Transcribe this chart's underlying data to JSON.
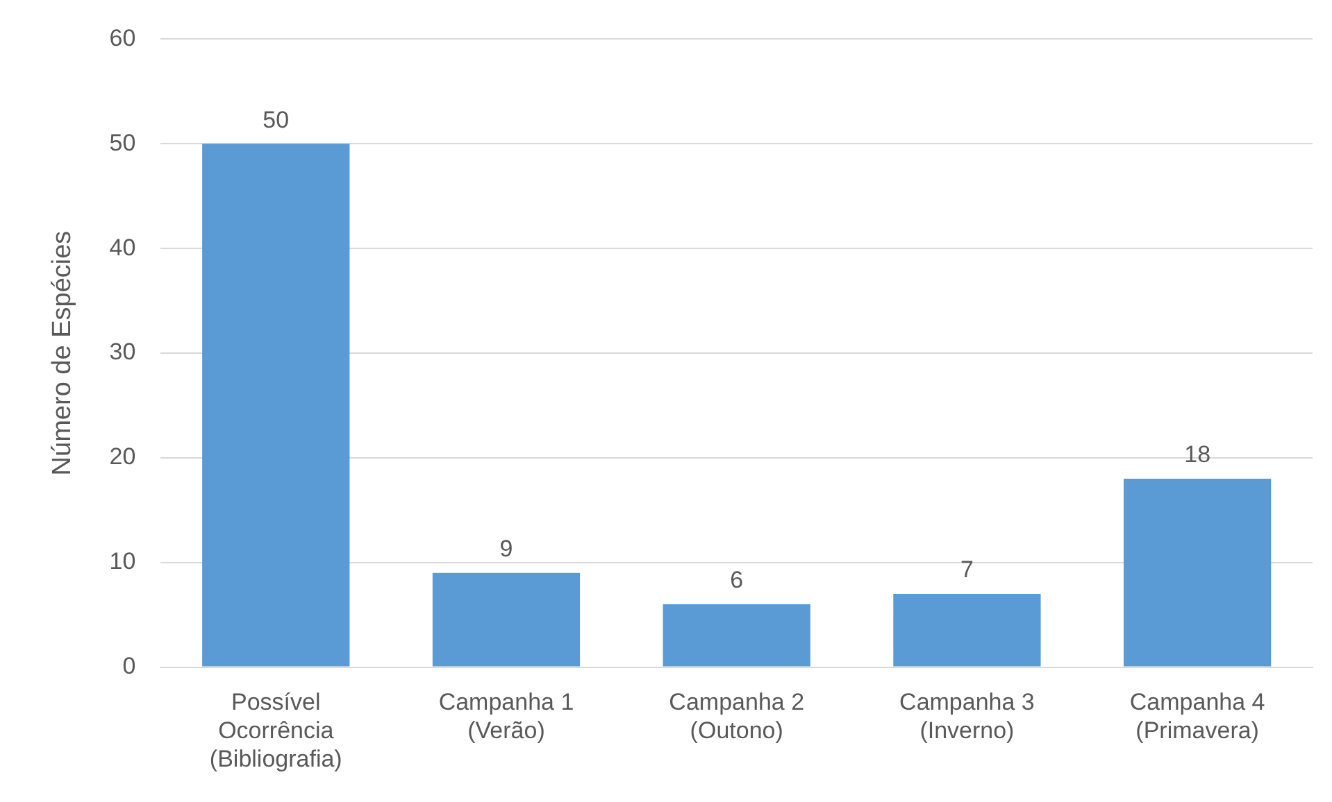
{
  "chart_data": {
    "type": "bar",
    "ylabel": "Número de Espécies",
    "categories": [
      "Possível\nOcorrência\n(Bibliografia)",
      "Campanha 1\n(Verão)",
      "Campanha 2\n(Outono)",
      "Campanha 3\n(Inverno)",
      "Campanha 4\n(Primavera)"
    ],
    "values": [
      50,
      9,
      6,
      7,
      18
    ],
    "color": "#5b9bd5",
    "ylim": [
      0,
      60
    ],
    "yticks": [
      0,
      10,
      20,
      30,
      40,
      50,
      60
    ],
    "grid": "y",
    "data_labels": true,
    "legend": false
  }
}
